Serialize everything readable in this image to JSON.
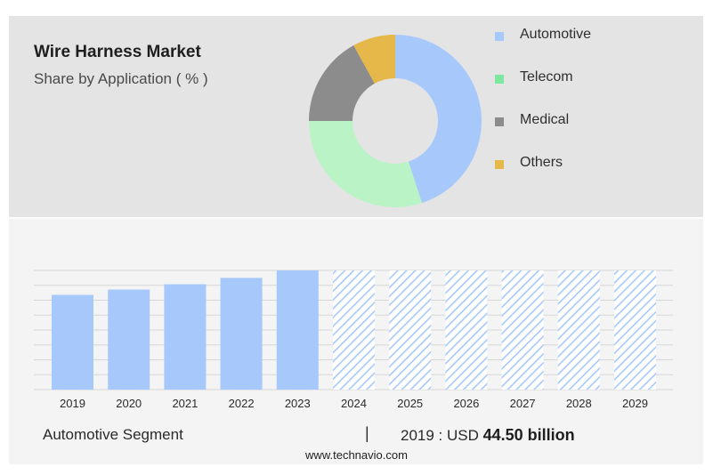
{
  "header": {
    "title": "Wire Harness Market",
    "subtitle": "Share by Application ( % )"
  },
  "legend": {
    "items": [
      {
        "label": "Automotive",
        "color": "#a7c8fb"
      },
      {
        "label": "Telecom",
        "color": "#7ee8a0"
      },
      {
        "label": "Medical",
        "color": "#8c8c8c"
      },
      {
        "label": "Others",
        "color": "#e6b84a"
      }
    ]
  },
  "chart_data": [
    {
      "type": "pie",
      "style": "donut",
      "categories": [
        "Automotive",
        "Telecom",
        "Medical",
        "Others"
      ],
      "values": [
        45,
        30,
        17,
        8
      ],
      "colors": [
        "#a7c8fb",
        "#b9f3c6",
        "#8c8c8c",
        "#e6b84a"
      ]
    },
    {
      "type": "bar",
      "categories": [
        "2019",
        "2020",
        "2021",
        "2022",
        "2023",
        "2024",
        "2025",
        "2026",
        "2027",
        "2028",
        "2029"
      ],
      "values": [
        44.5,
        47.0,
        49.5,
        52.5,
        56.0,
        56.0,
        56.0,
        56.0,
        56.0,
        56.0,
        56.0
      ],
      "forecast_from": "2024",
      "ylim": [
        0,
        56
      ],
      "grid": true,
      "color": "#a7c8fb"
    }
  ],
  "summary": {
    "segment_label": "Automotive Segment",
    "divider": "|",
    "value_prefix": "2019 : USD",
    "value": "44.50 billion"
  },
  "footer": {
    "source": "www.technavio.com"
  }
}
